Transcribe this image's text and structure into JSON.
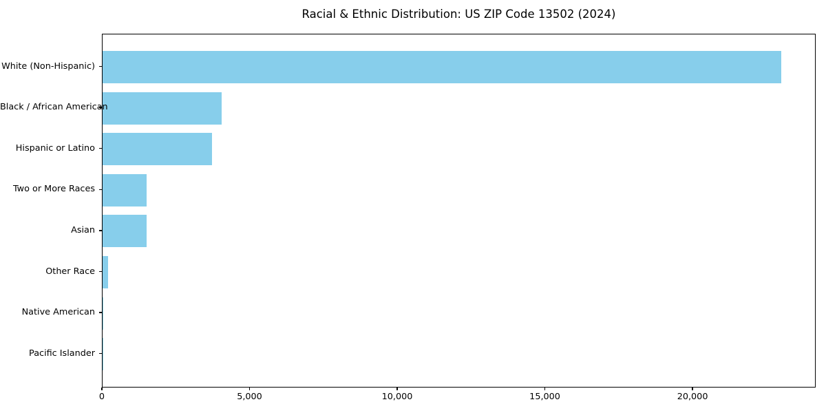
{
  "chart_data": {
    "type": "bar",
    "orientation": "horizontal",
    "title": "Racial & Ethnic Distribution: US ZIP Code 13502 (2024)",
    "categories": [
      "White (Non-Hispanic)",
      "Black / African American",
      "Hispanic or Latino",
      "Two or More Races",
      "Asian",
      "Other Race",
      "Native American",
      "Pacific Islander"
    ],
    "values": [
      23030,
      4030,
      3710,
      1500,
      1490,
      190,
      30,
      10
    ],
    "xlabel": "",
    "ylabel": "",
    "xlim": [
      0,
      24170
    ],
    "xticks": [
      0,
      5000,
      10000,
      15000,
      20000
    ],
    "xtick_labels": [
      "0",
      "5,000",
      "10,000",
      "15,000",
      "20,000"
    ],
    "bar_color": "#87CEEB",
    "grid": false,
    "legend": null,
    "background_color": "#ffffff",
    "spine_color": "#000000"
  }
}
